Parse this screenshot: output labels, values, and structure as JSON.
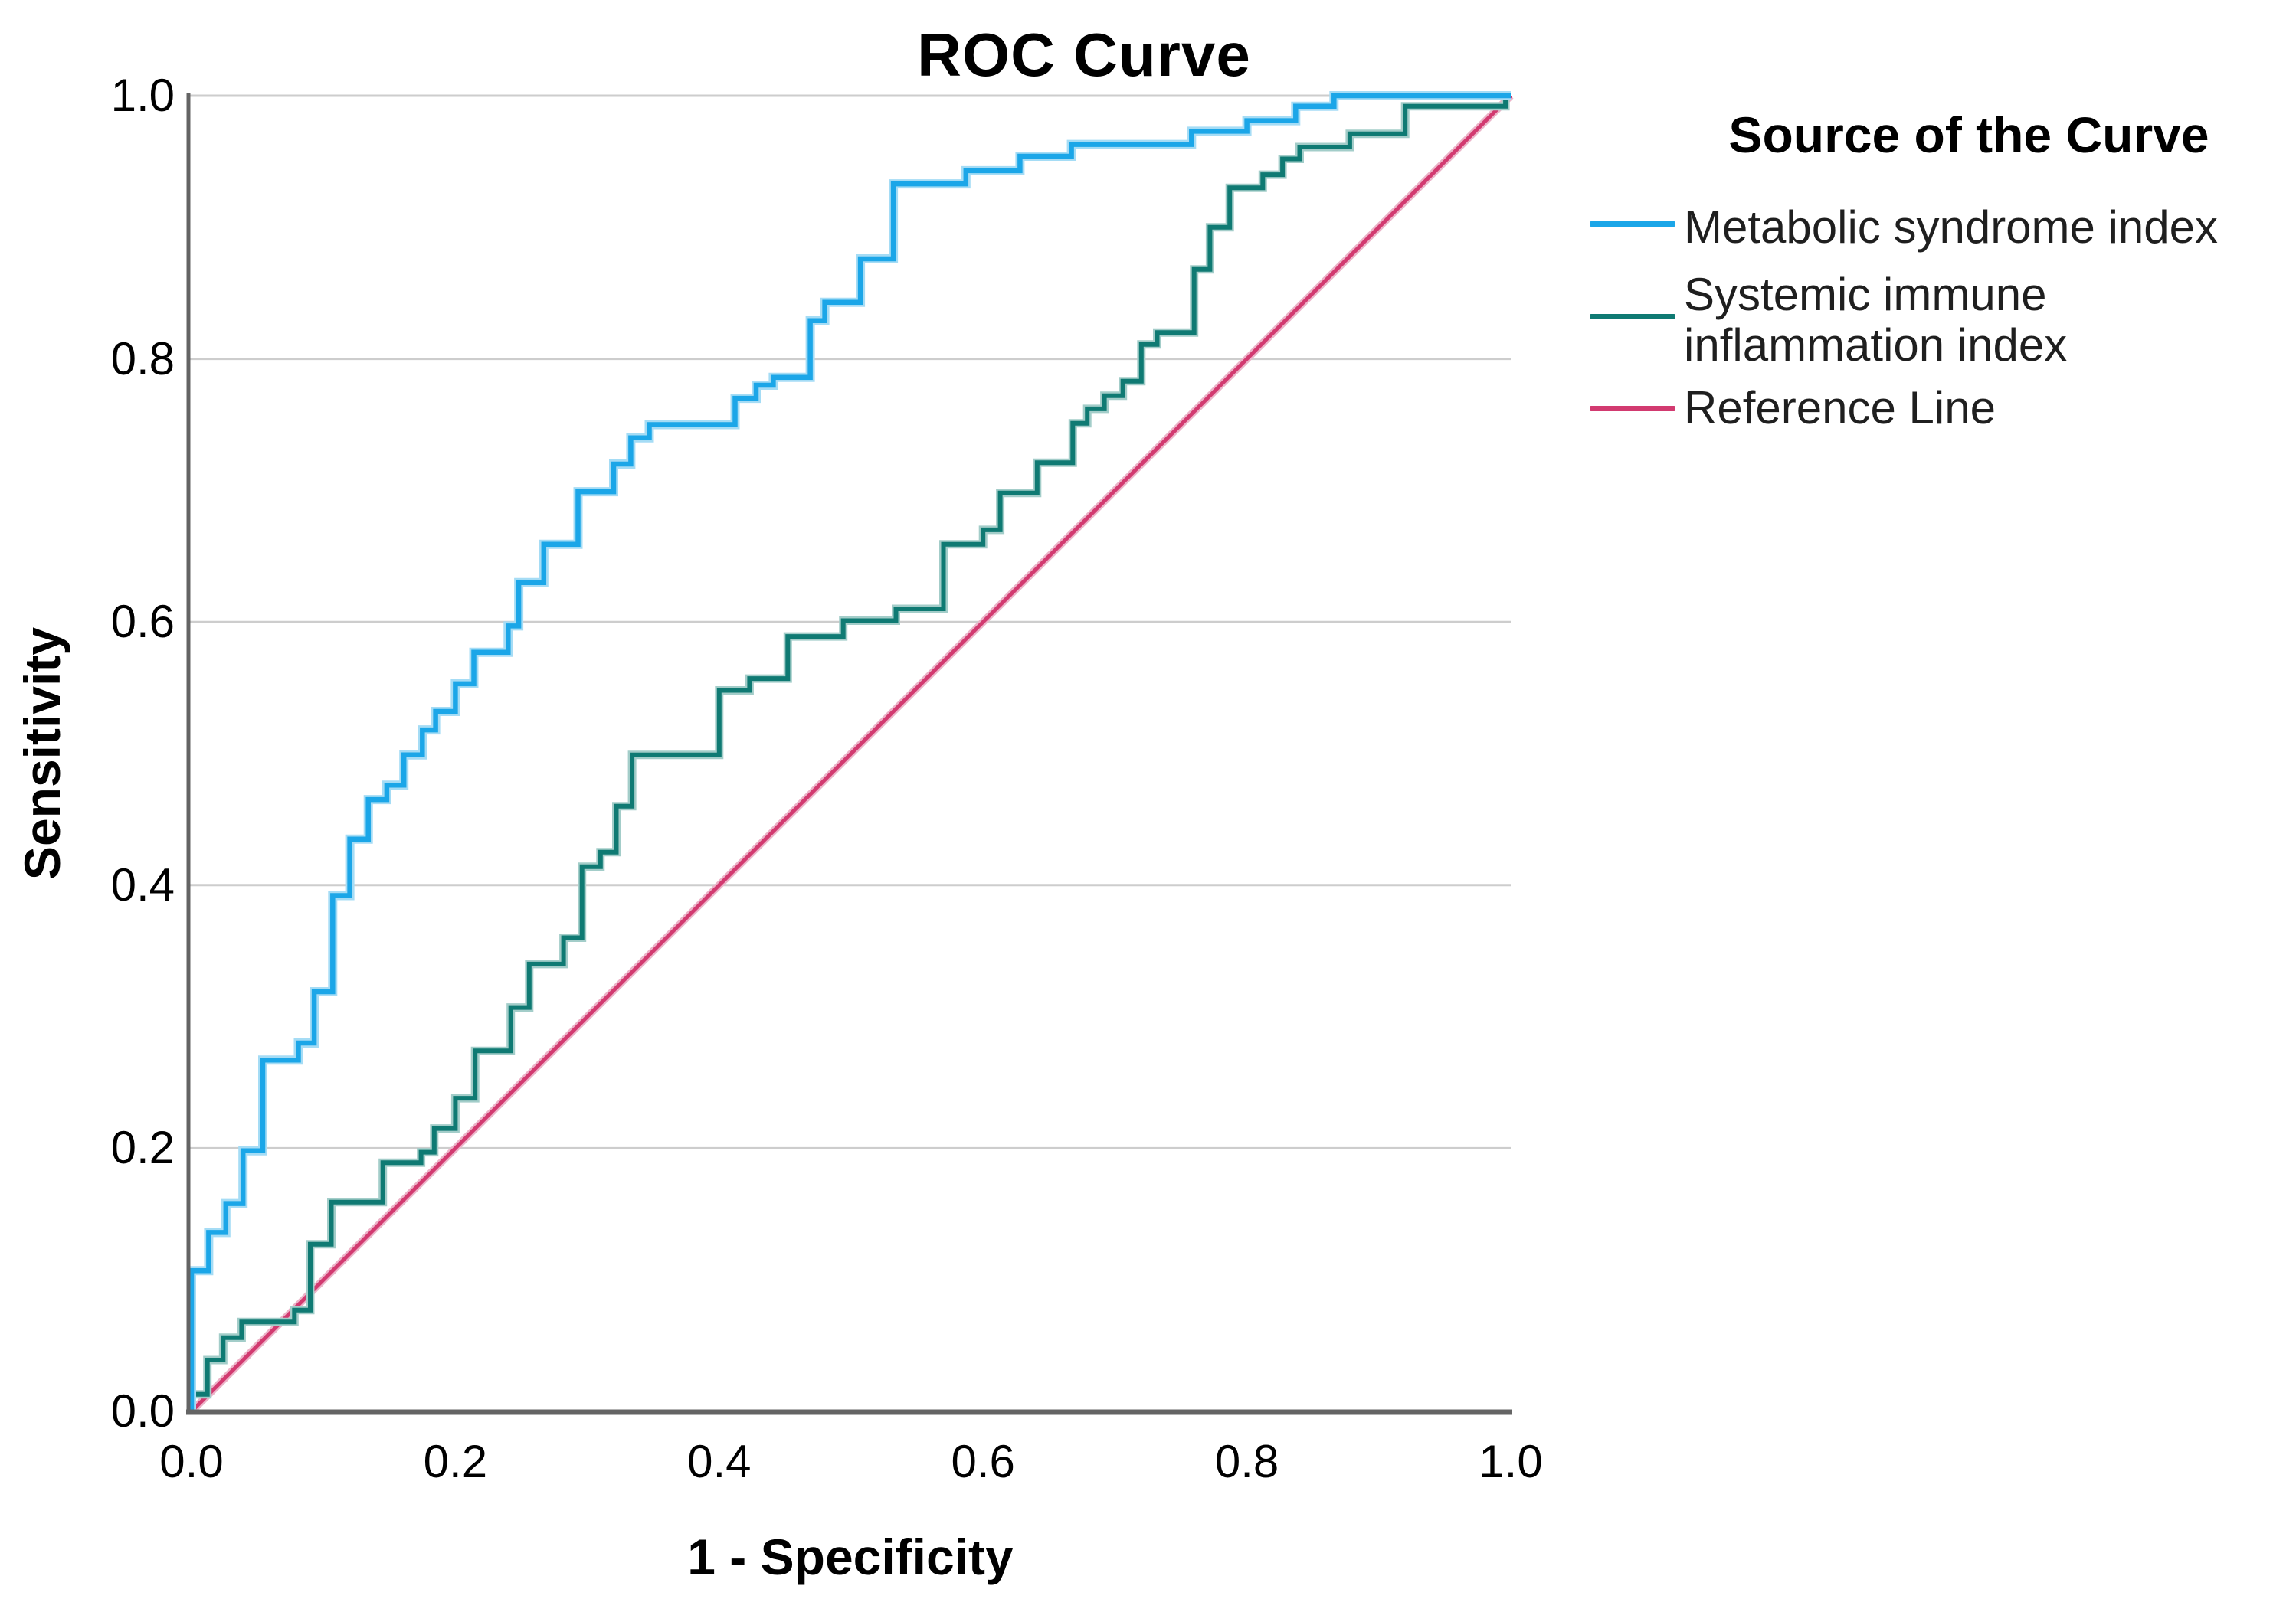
{
  "title": "ROC Curve",
  "axes": {
    "x_label": "1 - Specificity",
    "y_label": "Sensitivity",
    "x_ticks": [
      "0.0",
      "0.2",
      "0.4",
      "0.6",
      "0.8",
      "1.0"
    ],
    "y_ticks": [
      "0.0",
      "0.2",
      "0.4",
      "0.6",
      "0.8",
      "1.0"
    ]
  },
  "legend": {
    "title": "Source of the Curve",
    "items": [
      {
        "label": "Metabolic syndrome index",
        "label_line2": "",
        "color": "#1BA6E8"
      },
      {
        "label": "Systemic immune",
        "label_line2": "inflammation index",
        "color": "#0F7A73"
      },
      {
        "label": "Reference Line",
        "label_line2": "",
        "color": "#D23A70"
      }
    ]
  },
  "colors": {
    "grid": "#CDCDCD",
    "axis": "#646464",
    "background": "#FFFFFF",
    "curve_blue": "#1BA6E8",
    "curve_blue_halo": "#A5DCF5",
    "curve_green": "#0F7A73",
    "curve_green_halo": "#A3CDC9",
    "reference_pink": "#D23A70",
    "reference_pink_halo": "#ECB3C8"
  },
  "chart_data": {
    "type": "line",
    "title": "ROC Curve",
    "xlabel": "1 - Specificity",
    "ylabel": "Sensitivity",
    "xlim": [
      0,
      1
    ],
    "ylim": [
      0,
      1
    ],
    "x_tick_values": [
      0,
      0.2,
      0.4,
      0.6,
      0.8,
      1.0
    ],
    "y_tick_values": [
      0,
      0.2,
      0.4,
      0.6,
      0.8,
      1.0
    ],
    "grid": "horizontal-only",
    "legend_position": "right",
    "series": [
      {
        "name": "Metabolic syndrome index",
        "style": "step",
        "color": "#1BA6E8",
        "points": [
          [
            0,
            0
          ],
          [
            0,
            0.107
          ],
          [
            0.013,
            0.107
          ],
          [
            0.013,
            0.136
          ],
          [
            0.026,
            0.136
          ],
          [
            0.026,
            0.158
          ],
          [
            0.039,
            0.158
          ],
          [
            0.039,
            0.198
          ],
          [
            0.054,
            0.198
          ],
          [
            0.054,
            0.267
          ],
          [
            0.081,
            0.267
          ],
          [
            0.081,
            0.28
          ],
          [
            0.093,
            0.28
          ],
          [
            0.093,
            0.319
          ],
          [
            0.107,
            0.319
          ],
          [
            0.107,
            0.392
          ],
          [
            0.12,
            0.392
          ],
          [
            0.12,
            0.435
          ],
          [
            0.134,
            0.435
          ],
          [
            0.134,
            0.465
          ],
          [
            0.148,
            0.465
          ],
          [
            0.148,
            0.476
          ],
          [
            0.161,
            0.476
          ],
          [
            0.161,
            0.499
          ],
          [
            0.175,
            0.499
          ],
          [
            0.175,
            0.518
          ],
          [
            0.185,
            0.518
          ],
          [
            0.185,
            0.532
          ],
          [
            0.2,
            0.532
          ],
          [
            0.2,
            0.553
          ],
          [
            0.214,
            0.553
          ],
          [
            0.214,
            0.577
          ],
          [
            0.24,
            0.577
          ],
          [
            0.24,
            0.597
          ],
          [
            0.248,
            0.597
          ],
          [
            0.248,
            0.63
          ],
          [
            0.267,
            0.63
          ],
          [
            0.267,
            0.659
          ],
          [
            0.293,
            0.659
          ],
          [
            0.293,
            0.699
          ],
          [
            0.32,
            0.699
          ],
          [
            0.32,
            0.72
          ],
          [
            0.333,
            0.72
          ],
          [
            0.333,
            0.74
          ],
          [
            0.347,
            0.74
          ],
          [
            0.347,
            0.75
          ],
          [
            0.412,
            0.75
          ],
          [
            0.412,
            0.77
          ],
          [
            0.428,
            0.77
          ],
          [
            0.428,
            0.78
          ],
          [
            0.441,
            0.78
          ],
          [
            0.441,
            0.786
          ],
          [
            0.469,
            0.786
          ],
          [
            0.469,
            0.829
          ],
          [
            0.48,
            0.829
          ],
          [
            0.48,
            0.843
          ],
          [
            0.507,
            0.843
          ],
          [
            0.507,
            0.876
          ],
          [
            0.532,
            0.876
          ],
          [
            0.532,
            0.933
          ],
          [
            0.587,
            0.933
          ],
          [
            0.587,
            0.943
          ],
          [
            0.628,
            0.943
          ],
          [
            0.628,
            0.954
          ],
          [
            0.667,
            0.954
          ],
          [
            0.667,
            0.963
          ],
          [
            0.758,
            0.963
          ],
          [
            0.758,
            0.973
          ],
          [
            0.8,
            0.973
          ],
          [
            0.8,
            0.981
          ],
          [
            0.837,
            0.981
          ],
          [
            0.837,
            0.992
          ],
          [
            0.866,
            0.992
          ],
          [
            0.866,
            1
          ],
          [
            1,
            1
          ]
        ]
      },
      {
        "name": "Systemic immune inflammation index",
        "style": "step",
        "color": "#0F7A73",
        "points": [
          [
            0,
            0
          ],
          [
            0,
            0.013
          ],
          [
            0.012,
            0.013
          ],
          [
            0.012,
            0.039
          ],
          [
            0.024,
            0.039
          ],
          [
            0.024,
            0.056
          ],
          [
            0.038,
            0.056
          ],
          [
            0.038,
            0.068
          ],
          [
            0.078,
            0.068
          ],
          [
            0.078,
            0.077
          ],
          [
            0.09,
            0.077
          ],
          [
            0.09,
            0.127
          ],
          [
            0.106,
            0.127
          ],
          [
            0.106,
            0.159
          ],
          [
            0.145,
            0.159
          ],
          [
            0.145,
            0.189
          ],
          [
            0.174,
            0.189
          ],
          [
            0.174,
            0.197
          ],
          [
            0.184,
            0.197
          ],
          [
            0.184,
            0.215
          ],
          [
            0.2,
            0.215
          ],
          [
            0.2,
            0.238
          ],
          [
            0.215,
            0.238
          ],
          [
            0.215,
            0.274
          ],
          [
            0.242,
            0.274
          ],
          [
            0.242,
            0.307
          ],
          [
            0.256,
            0.307
          ],
          [
            0.256,
            0.34
          ],
          [
            0.282,
            0.34
          ],
          [
            0.282,
            0.36
          ],
          [
            0.296,
            0.36
          ],
          [
            0.296,
            0.414
          ],
          [
            0.31,
            0.414
          ],
          [
            0.31,
            0.425
          ],
          [
            0.322,
            0.425
          ],
          [
            0.322,
            0.46
          ],
          [
            0.334,
            0.46
          ],
          [
            0.334,
            0.499
          ],
          [
            0.4,
            0.499
          ],
          [
            0.4,
            0.548
          ],
          [
            0.423,
            0.548
          ],
          [
            0.423,
            0.557
          ],
          [
            0.452,
            0.557
          ],
          [
            0.452,
            0.589
          ],
          [
            0.494,
            0.589
          ],
          [
            0.494,
            0.601
          ],
          [
            0.534,
            0.601
          ],
          [
            0.534,
            0.61
          ],
          [
            0.57,
            0.61
          ],
          [
            0.57,
            0.659
          ],
          [
            0.6,
            0.659
          ],
          [
            0.6,
            0.67
          ],
          [
            0.613,
            0.67
          ],
          [
            0.613,
            0.698
          ],
          [
            0.641,
            0.698
          ],
          [
            0.641,
            0.721
          ],
          [
            0.668,
            0.721
          ],
          [
            0.668,
            0.751
          ],
          [
            0.679,
            0.751
          ],
          [
            0.679,
            0.762
          ],
          [
            0.692,
            0.762
          ],
          [
            0.692,
            0.772
          ],
          [
            0.706,
            0.772
          ],
          [
            0.706,
            0.783
          ],
          [
            0.72,
            0.783
          ],
          [
            0.72,
            0.811
          ],
          [
            0.732,
            0.811
          ],
          [
            0.732,
            0.82
          ],
          [
            0.76,
            0.82
          ],
          [
            0.76,
            0.868
          ],
          [
            0.772,
            0.868
          ],
          [
            0.772,
            0.9
          ],
          [
            0.787,
            0.9
          ],
          [
            0.787,
            0.93
          ],
          [
            0.812,
            0.93
          ],
          [
            0.812,
            0.94
          ],
          [
            0.827,
            0.94
          ],
          [
            0.827,
            0.952
          ],
          [
            0.84,
            0.952
          ],
          [
            0.84,
            0.961
          ],
          [
            0.878,
            0.961
          ],
          [
            0.878,
            0.971
          ],
          [
            0.92,
            0.971
          ],
          [
            0.92,
            0.992
          ],
          [
            0.996,
            0.992
          ],
          [
            0.996,
            1
          ],
          [
            1,
            1
          ]
        ]
      },
      {
        "name": "Reference Line",
        "style": "straight",
        "color": "#D23A70",
        "points": [
          [
            0,
            0
          ],
          [
            1,
            1
          ]
        ]
      }
    ]
  }
}
